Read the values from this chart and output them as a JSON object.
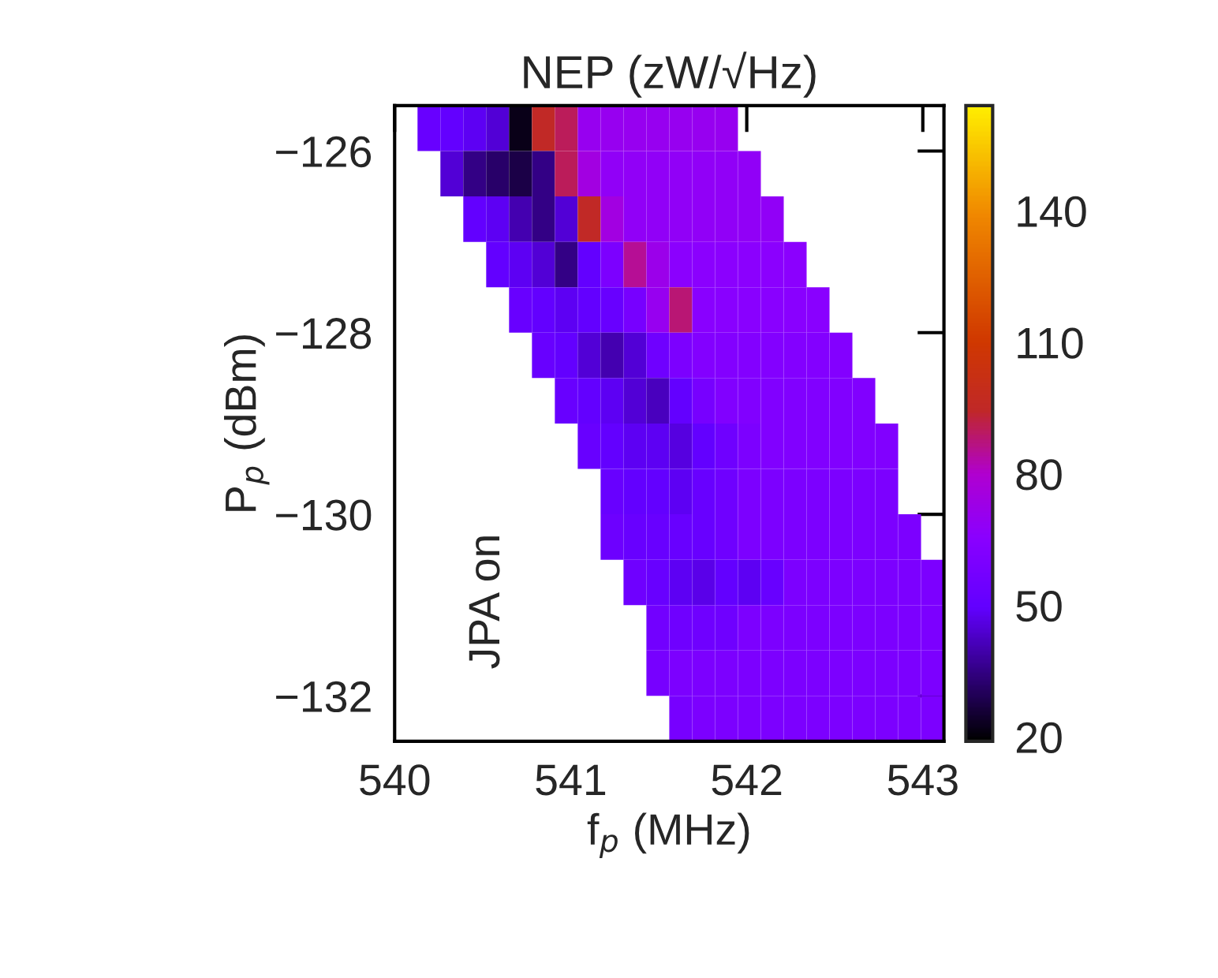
{
  "chart_data": {
    "type": "heatmap",
    "title": "NEP (zW/√Hz)",
    "xlabel": "f$_{p}$ (MHz)",
    "ylabel": "P$_{p}$ (dBm)",
    "x": [
      540.065,
      540.195,
      540.325,
      540.455,
      540.585,
      540.715,
      540.845,
      540.975,
      541.105,
      541.235,
      541.365,
      541.495,
      541.625,
      541.755,
      541.885,
      542.015,
      542.145,
      542.275,
      542.405,
      542.535,
      542.665,
      542.795,
      542.925,
      543.055
    ],
    "y": [
      -125.75,
      -126.25,
      -126.75,
      -127.25,
      -127.75,
      -128.25,
      -128.75,
      -129.25,
      -129.75,
      -130.25,
      -130.75,
      -131.25,
      -131.75,
      -132.25
    ],
    "xlim": [
      540,
      543.12
    ],
    "xticks": [
      540,
      541,
      542,
      543
    ],
    "ylim": [
      -132.5,
      -125.5
    ],
    "yticks": [
      {
        "value": -126,
        "label": "−126"
      },
      {
        "value": -128,
        "label": "−128"
      },
      {
        "value": -130,
        "label": "−130"
      },
      {
        "value": -132,
        "label": "−132"
      }
    ],
    "clim": [
      19,
      164
    ],
    "cticks": [
      20,
      50,
      80,
      110,
      140
    ],
    "annotations": [
      "JPA on"
    ],
    "cells": [
      [
        null,
        52,
        50,
        48,
        45,
        22,
        95,
        90,
        70,
        70,
        70,
        70,
        70,
        70,
        70,
        null,
        null,
        null,
        null,
        null,
        null,
        null,
        null,
        null
      ],
      [
        null,
        null,
        45,
        35,
        32,
        28,
        35,
        90,
        75,
        68,
        68,
        68,
        68,
        68,
        68,
        68,
        null,
        null,
        null,
        null,
        null,
        null,
        null,
        null
      ],
      [
        null,
        null,
        null,
        50,
        48,
        40,
        35,
        45,
        95,
        75,
        68,
        68,
        68,
        68,
        68,
        68,
        68,
        null,
        null,
        null,
        null,
        null,
        null,
        null
      ],
      [
        null,
        null,
        null,
        null,
        50,
        48,
        45,
        35,
        50,
        60,
        85,
        72,
        66,
        66,
        66,
        66,
        66,
        66,
        null,
        null,
        null,
        null,
        null,
        null
      ],
      [
        null,
        null,
        null,
        null,
        null,
        52,
        50,
        48,
        50,
        52,
        58,
        70,
        88,
        65,
        65,
        65,
        65,
        65,
        65,
        null,
        null,
        null,
        null,
        null
      ],
      [
        null,
        null,
        null,
        null,
        null,
        null,
        52,
        50,
        45,
        40,
        45,
        55,
        60,
        63,
        63,
        63,
        63,
        63,
        63,
        63,
        null,
        null,
        null,
        null
      ],
      [
        null,
        null,
        null,
        null,
        null,
        null,
        null,
        52,
        50,
        48,
        45,
        42,
        50,
        58,
        62,
        62,
        62,
        62,
        62,
        62,
        62,
        null,
        null,
        null
      ],
      [
        null,
        null,
        null,
        null,
        null,
        null,
        null,
        null,
        52,
        50,
        48,
        48,
        46,
        50,
        55,
        60,
        62,
        62,
        62,
        62,
        62,
        62,
        null,
        null
      ],
      [
        null,
        null,
        null,
        null,
        null,
        null,
        null,
        null,
        null,
        52,
        50,
        50,
        48,
        52,
        55,
        60,
        60,
        60,
        60,
        60,
        60,
        60,
        null,
        null
      ],
      [
        null,
        null,
        null,
        null,
        null,
        null,
        null,
        null,
        null,
        54,
        52,
        52,
        52,
        52,
        55,
        60,
        60,
        60,
        60,
        60,
        60,
        60,
        60,
        null
      ],
      [
        null,
        null,
        null,
        null,
        null,
        null,
        null,
        null,
        null,
        null,
        55,
        52,
        48,
        47,
        50,
        48,
        52,
        60,
        60,
        60,
        60,
        60,
        60,
        60
      ],
      [
        null,
        null,
        null,
        null,
        null,
        null,
        null,
        null,
        null,
        null,
        null,
        56,
        55,
        55,
        55,
        60,
        60,
        60,
        60,
        60,
        60,
        60,
        60,
        60
      ],
      [
        null,
        null,
        null,
        null,
        null,
        null,
        null,
        null,
        null,
        null,
        null,
        58,
        60,
        60,
        60,
        60,
        60,
        60,
        60,
        60,
        60,
        60,
        60,
        60
      ],
      [
        null,
        null,
        null,
        null,
        null,
        null,
        null,
        null,
        null,
        null,
        null,
        null,
        58,
        60,
        60,
        60,
        60,
        60,
        60,
        60,
        60,
        60,
        60,
        60
      ]
    ]
  }
}
